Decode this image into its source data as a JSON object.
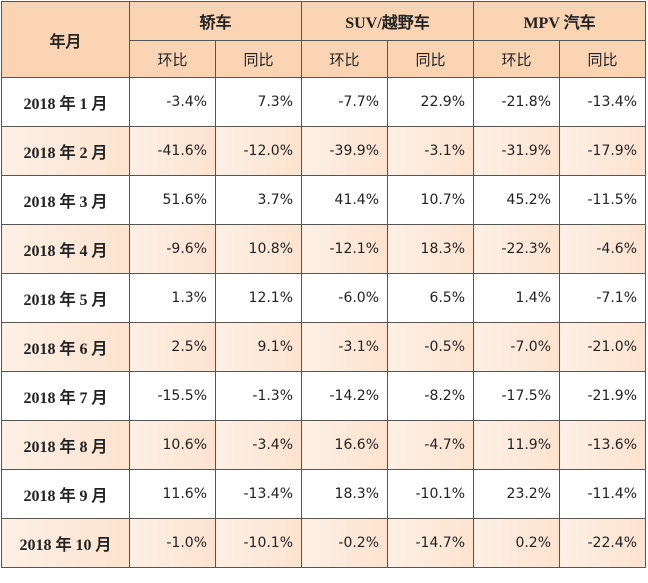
{
  "header": {
    "corner": "年月",
    "groups": [
      {
        "title": "轿车",
        "sub": [
          "环比",
          "同比"
        ]
      },
      {
        "title": "SUV/越野车",
        "sub": [
          "环比",
          "同比"
        ]
      },
      {
        "title": "MPV 汽车",
        "sub": [
          "环比",
          "同比"
        ]
      }
    ]
  },
  "table": {
    "rows": [
      {
        "label": "2018 年 1 月",
        "values": [
          "-3.4%",
          "7.3%",
          "-7.7%",
          "22.9%",
          "-21.8%",
          "-13.4%"
        ]
      },
      {
        "label": "2018 年 2 月",
        "values": [
          "-41.6%",
          "-12.0%",
          "-39.9%",
          "-3.1%",
          "-31.9%",
          "-17.9%"
        ]
      },
      {
        "label": "2018 年 3 月",
        "values": [
          "51.6%",
          "3.7%",
          "41.4%",
          "10.7%",
          "45.2%",
          "-11.5%"
        ]
      },
      {
        "label": "2018 年 4 月",
        "values": [
          "-9.6%",
          "10.8%",
          "-12.1%",
          "18.3%",
          "-22.3%",
          "-4.6%"
        ]
      },
      {
        "label": "2018 年 5 月",
        "values": [
          "1.3%",
          "12.1%",
          "-6.0%",
          "6.5%",
          "1.4%",
          "-7.1%"
        ]
      },
      {
        "label": "2018 年 6 月",
        "values": [
          "2.5%",
          "9.1%",
          "-3.1%",
          "-0.5%",
          "-7.0%",
          "-21.0%"
        ]
      },
      {
        "label": "2018 年 7 月",
        "values": [
          "-15.5%",
          "-1.3%",
          "-14.2%",
          "-8.2%",
          "-17.5%",
          "-21.9%"
        ]
      },
      {
        "label": "2018 年 8 月",
        "values": [
          "10.6%",
          "-3.4%",
          "16.6%",
          "-4.7%",
          "11.9%",
          "-13.6%"
        ]
      },
      {
        "label": "2018 年 9 月",
        "values": [
          "11.6%",
          "-13.4%",
          "18.3%",
          "-10.1%",
          "23.2%",
          "-11.4%"
        ]
      },
      {
        "label": "2018 年 10 月",
        "values": [
          "-1.0%",
          "-10.1%",
          "-0.2%",
          "-14.7%",
          "0.2%",
          "-22.4%"
        ]
      }
    ]
  }
}
